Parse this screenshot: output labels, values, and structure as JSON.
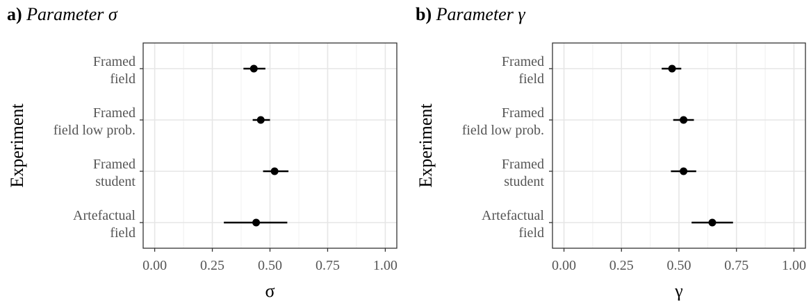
{
  "chart_data": [
    {
      "type": "scatter",
      "panel_label": "a)",
      "title": "Parameter σ",
      "xlabel": "σ",
      "ylabel": "Experiment",
      "xlim": [
        -0.05,
        1.05
      ],
      "x_ticks": [
        "0.00",
        "0.25",
        "0.50",
        "0.75",
        "1.00"
      ],
      "categories": [
        [
          "Framed",
          "field"
        ],
        [
          "Framed",
          "field low prob."
        ],
        [
          "Framed",
          "student"
        ],
        [
          "Artefactual",
          "field"
        ]
      ],
      "estimates": [
        0.43,
        0.46,
        0.52,
        0.44
      ],
      "ci_low": [
        0.385,
        0.425,
        0.47,
        0.3
      ],
      "ci_high": [
        0.48,
        0.5,
        0.58,
        0.575
      ],
      "grid": true
    },
    {
      "type": "scatter",
      "panel_label": "b)",
      "title": "Parameter γ",
      "xlabel": "γ",
      "ylabel": "Experiment",
      "xlim": [
        -0.05,
        1.05
      ],
      "x_ticks": [
        "0.00",
        "0.25",
        "0.50",
        "0.75",
        "1.00"
      ],
      "categories": [
        [
          "Framed",
          "field"
        ],
        [
          "Framed",
          "field low prob."
        ],
        [
          "Framed",
          "student"
        ],
        [
          "Artefactual",
          "field"
        ]
      ],
      "estimates": [
        0.47,
        0.52,
        0.52,
        0.645
      ],
      "ci_low": [
        0.425,
        0.475,
        0.465,
        0.555
      ],
      "ci_high": [
        0.51,
        0.565,
        0.575,
        0.735
      ],
      "grid": true
    }
  ]
}
